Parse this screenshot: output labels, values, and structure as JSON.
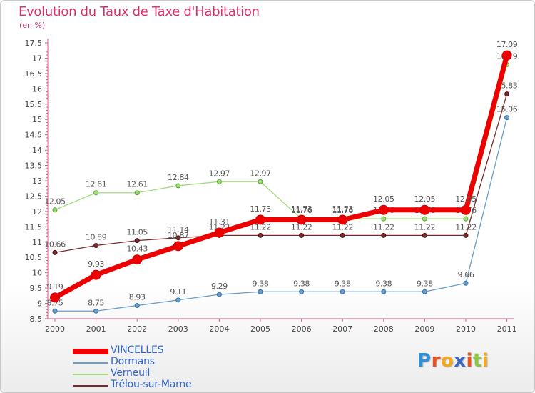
{
  "header": {
    "title": "Evolution du Taux de Taxe d'Habitation",
    "subtitle": "(en %)"
  },
  "logo": {
    "text": "Proxiti",
    "letters": [
      {
        "char": "P",
        "color": "#2f8fd8"
      },
      {
        "char": "r",
        "color": "#e8531f"
      },
      {
        "char": "o",
        "color": "#f2a81d"
      },
      {
        "char": "x",
        "color": "#3a66c4"
      },
      {
        "char": "i",
        "color": "#e8531f"
      },
      {
        "char": "t",
        "color": "#8cc63f"
      },
      {
        "char": "i",
        "color": "#f2a81d"
      }
    ]
  },
  "chart_data": {
    "type": "line",
    "title": "Evolution du Taux de Taxe d'Habitation",
    "ylabel": "(en %)",
    "xlabel": "",
    "x": [
      "2000",
      "2001",
      "2002",
      "2003",
      "2004",
      "2005",
      "2006",
      "2007",
      "2008",
      "2009",
      "2010",
      "2011"
    ],
    "ylim": [
      8.5,
      17.5
    ],
    "yticks": [
      8.5,
      9,
      9.5,
      10,
      10.5,
      11,
      11.5,
      12,
      12.5,
      13,
      13.5,
      14,
      14.5,
      15,
      15.5,
      16,
      16.5,
      17,
      17.5
    ],
    "grid": false,
    "legend_position": "bottom-left",
    "series": [
      {
        "name": "VINCELLES",
        "color": "#ee0000",
        "values": [
          9.19,
          9.93,
          10.43,
          10.87,
          11.31,
          11.73,
          11.73,
          11.73,
          12.05,
          12.05,
          12.05,
          17.09
        ],
        "labels": [
          "9.19",
          "9.93",
          "10.43",
          "10.87",
          "11.31",
          "11.73",
          "11.73",
          "11.73",
          "12.05",
          "12.05",
          "12.05",
          "17.09"
        ]
      },
      {
        "name": "Dormans",
        "color": "#6a9ec8",
        "values": [
          8.75,
          8.75,
          8.93,
          9.11,
          9.29,
          9.38,
          9.38,
          9.38,
          9.38,
          9.38,
          9.66,
          15.06
        ],
        "labels": [
          "8.75",
          "8.75",
          "8.93",
          "9.11",
          "9.29",
          "9.38",
          "9.38",
          "9.38",
          "9.38",
          "9.38",
          "9.66",
          "15.06"
        ]
      },
      {
        "name": "Verneuil",
        "color": "#9fdb7a",
        "values": [
          12.05,
          12.61,
          12.61,
          12.84,
          12.97,
          12.97,
          11.76,
          11.76,
          11.76,
          11.76,
          11.76,
          16.79
        ],
        "labels": [
          "12.05",
          "12.61",
          "12.61",
          "12.84",
          "12.97",
          "12.97",
          "11.76",
          "11.76",
          "11.76",
          "11.76",
          "11.76",
          "16.79"
        ]
      },
      {
        "name": "Trélou-sur-Marne",
        "color": "#7a2a2a",
        "values": [
          10.66,
          10.89,
          11.05,
          11.14,
          11.22,
          11.22,
          11.22,
          11.22,
          11.22,
          11.22,
          11.22,
          15.83
        ],
        "labels": [
          "10.66",
          "10.89",
          "11.05",
          "11.14",
          "11.22",
          "11.22",
          "11.22",
          "11.22",
          "11.22",
          "11.22",
          "11.22",
          "15.83"
        ]
      }
    ]
  }
}
